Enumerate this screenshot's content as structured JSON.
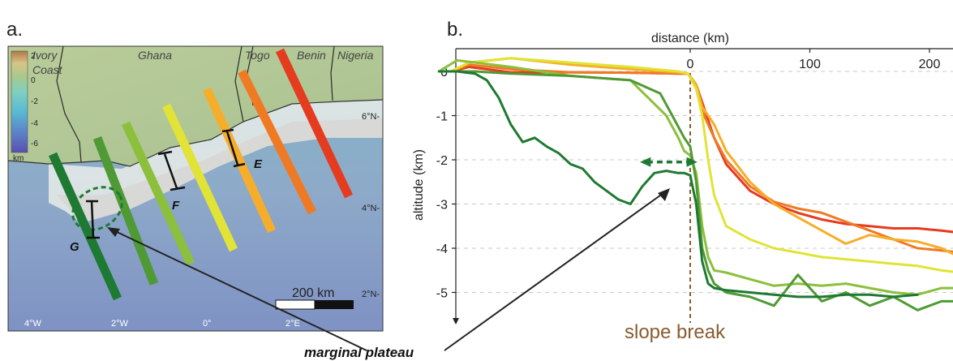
{
  "panel_a": {
    "label": "a.",
    "countries": [
      "Ivory",
      "Coast",
      "Ghana",
      "Togo",
      "Benin",
      "Nigeria"
    ],
    "legend": {
      "ticks": [
        "2",
        "0",
        "-2",
        "-4",
        "-6"
      ],
      "unit": "km"
    },
    "lat_labels": [
      "6°N-",
      "4°N-",
      "2°N-"
    ],
    "lon_labels": [
      "4°W",
      "2°W",
      "0°",
      "2°E"
    ],
    "scale_label": "200 km",
    "segment_labels": [
      "E",
      "F",
      "G"
    ],
    "profile_colors": [
      "#1e7a32",
      "#4f9a34",
      "#8cbf3c",
      "#e1e336",
      "#f6ae2a",
      "#f07a24",
      "#e53b1f"
    ]
  },
  "annotation": {
    "slope_break": "slope break",
    "marginal_plateau": "marginal plateau"
  },
  "chart_data": {
    "type": "line",
    "panel_label": "b.",
    "title": "",
    "xlabel": "distance (km)",
    "ylabel": "altitude (km)",
    "xlim": [
      -210,
      225
    ],
    "ylim": [
      -5.5,
      0.5
    ],
    "xticks": [
      0,
      100,
      200
    ],
    "yticks": [
      0,
      -1,
      -2,
      -3,
      -4,
      -5
    ],
    "slope_break_x": 0,
    "grid": "horizontal dashed",
    "series": [
      {
        "color": "#e53b1f",
        "x": [
          -200,
          -185,
          -150,
          -100,
          -50,
          -10,
          -2,
          5,
          10,
          20,
          30,
          50,
          70,
          90,
          110,
          130,
          150,
          170,
          190,
          210,
          225
        ],
        "y": [
          0,
          0.1,
          -0.02,
          -0.02,
          -0.03,
          -0.05,
          -0.05,
          -0.3,
          -0.7,
          -1.5,
          -2.1,
          -2.7,
          -3.0,
          -3.2,
          -3.35,
          -3.45,
          -3.5,
          -3.55,
          -3.55,
          -3.6,
          -3.65
        ]
      },
      {
        "color": "#f07a24",
        "x": [
          -200,
          -185,
          -150,
          -100,
          -50,
          -10,
          -2,
          5,
          10,
          20,
          30,
          50,
          70,
          90,
          110,
          130,
          150,
          170,
          190,
          210,
          225
        ],
        "y": [
          0,
          0.15,
          0.05,
          -0.02,
          -0.03,
          -0.05,
          -0.05,
          -0.3,
          -0.9,
          -1.5,
          -2.0,
          -2.6,
          -2.95,
          -3.1,
          -3.2,
          -3.4,
          -3.6,
          -3.8,
          -4.0,
          -4.05,
          -4.1
        ]
      },
      {
        "color": "#f6ae2a",
        "x": [
          -200,
          -185,
          -150,
          -100,
          -50,
          -10,
          -2,
          5,
          10,
          20,
          30,
          50,
          70,
          90,
          110,
          130,
          150,
          170,
          190,
          210,
          225
        ],
        "y": [
          0,
          0.2,
          0.3,
          0.15,
          0.05,
          -0.02,
          -0.05,
          -0.3,
          -0.8,
          -1.2,
          -1.8,
          -2.5,
          -3.0,
          -3.3,
          -3.6,
          -3.9,
          -3.7,
          -3.8,
          -3.85,
          -4.0,
          -4.2
        ]
      },
      {
        "color": "#e1e336",
        "x": [
          -200,
          -185,
          -150,
          -100,
          -50,
          -10,
          -2,
          5,
          10,
          15,
          20,
          30,
          50,
          70,
          90,
          110,
          130,
          150,
          170,
          190,
          210,
          225
        ],
        "y": [
          0,
          0.2,
          0.3,
          0.2,
          0.1,
          0.0,
          -0.05,
          -0.4,
          -1.0,
          -2.0,
          -2.8,
          -3.5,
          -3.8,
          -4.0,
          -4.1,
          -4.2,
          -4.25,
          -4.3,
          -4.35,
          -4.4,
          -4.5,
          -4.55
        ]
      },
      {
        "color": "#8cbf3c",
        "x": [
          -210,
          -195,
          -150,
          -100,
          -50,
          -20,
          -10,
          -5,
          0,
          5,
          10,
          15,
          20,
          30,
          50,
          70,
          90,
          110,
          130,
          150,
          170,
          190,
          210,
          225
        ],
        "y": [
          0,
          0.25,
          0.1,
          -0.1,
          -0.2,
          -1.0,
          -1.5,
          -1.8,
          -1.9,
          -2.3,
          -3.5,
          -4.2,
          -4.5,
          -4.55,
          -4.7,
          -4.85,
          -4.8,
          -4.85,
          -4.8,
          -4.9,
          -5.0,
          -5.05,
          -4.9,
          -4.9
        ]
      },
      {
        "color": "#4f9a34",
        "x": [
          -200,
          -180,
          -150,
          -100,
          -50,
          -25,
          -15,
          -5,
          0,
          5,
          10,
          15,
          20,
          30,
          50,
          70,
          90,
          110,
          130,
          150,
          170,
          190,
          210,
          225
        ],
        "y": [
          0,
          0,
          -0.05,
          -0.1,
          -0.2,
          -0.5,
          -1.0,
          -1.5,
          -1.7,
          -2.5,
          -4.0,
          -4.5,
          -4.8,
          -5.0,
          -5.1,
          -5.3,
          -4.6,
          -5.2,
          -5.0,
          -5.3,
          -5.1,
          -5.4,
          -5.2,
          -5.2
        ]
      },
      {
        "color": "#1e7a32",
        "x": [
          -210,
          -195,
          -180,
          -170,
          -160,
          -150,
          -140,
          -130,
          -120,
          -110,
          -100,
          -90,
          -80,
          -70,
          -60,
          -50,
          -40,
          -30,
          -20,
          -10,
          -5,
          0,
          5,
          10,
          15,
          20,
          30,
          50,
          70,
          90,
          110,
          130,
          150,
          170,
          190
        ],
        "y": [
          0,
          0,
          -0.05,
          -0.2,
          -0.6,
          -1.2,
          -1.6,
          -1.5,
          -1.7,
          -1.85,
          -2.1,
          -2.2,
          -2.5,
          -2.7,
          -2.9,
          -3.0,
          -2.6,
          -2.3,
          -2.25,
          -2.3,
          -2.3,
          -2.35,
          -3.0,
          -4.3,
          -4.8,
          -4.9,
          -4.95,
          -5.0,
          -5.05,
          -5.1,
          -5.1,
          -5.05,
          -5.05,
          -5.1,
          -5.05
        ]
      }
    ]
  }
}
